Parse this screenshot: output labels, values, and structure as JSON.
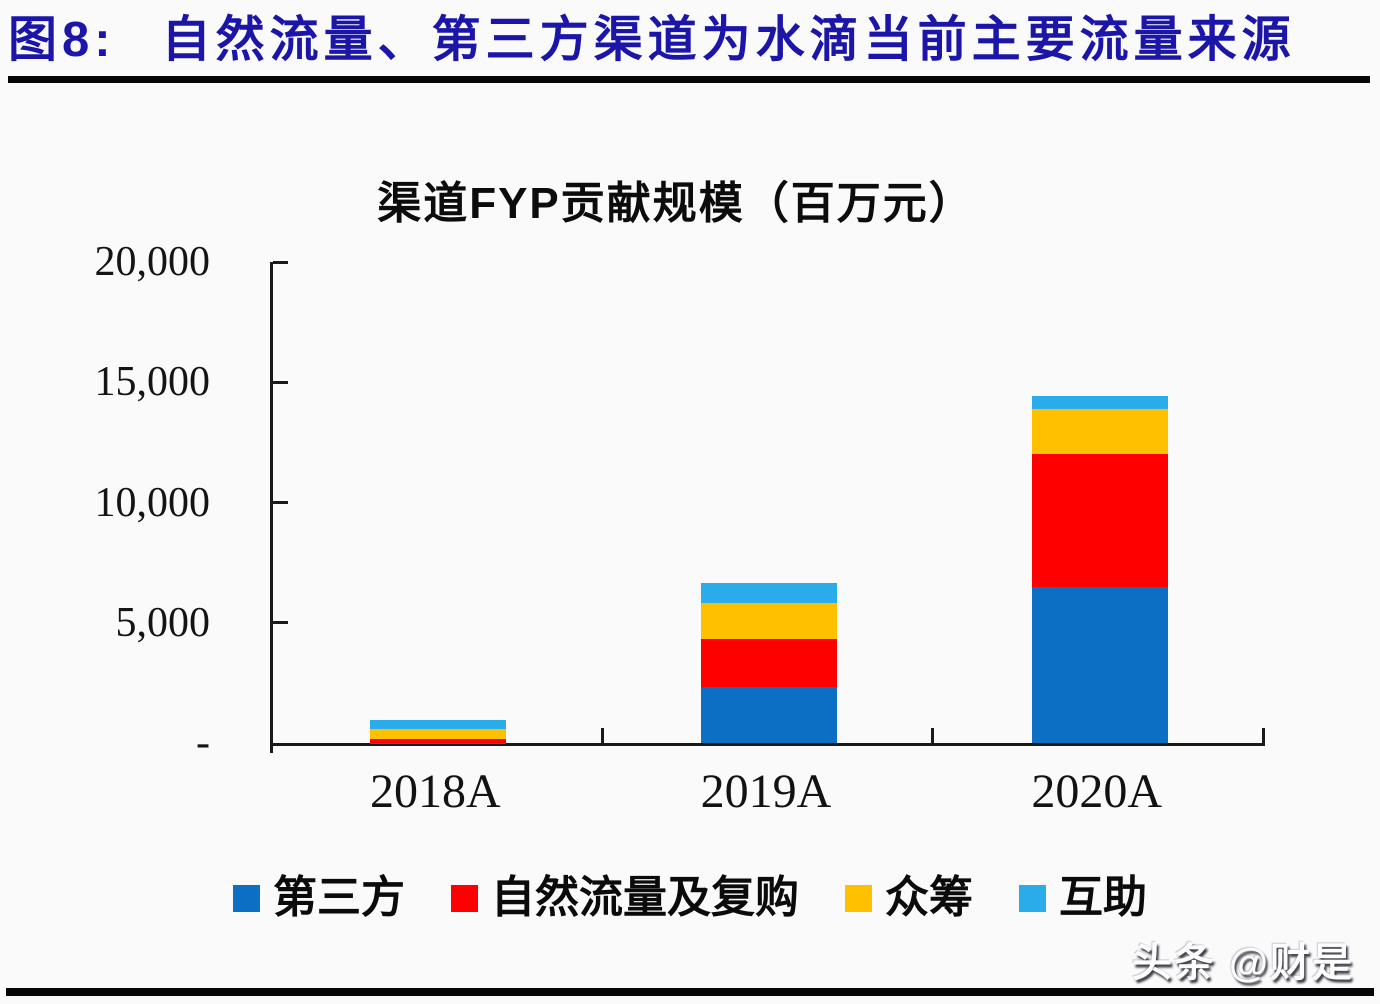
{
  "figure_header": {
    "label": "图8:",
    "title": "自然流量、第三方渠道为水滴当前主要流量来源"
  },
  "chart_data": {
    "type": "bar",
    "stacked": true,
    "title": "渠道FYP贡献规模（百万元）",
    "categories": [
      "2018A",
      "2019A",
      "2020A"
    ],
    "series": [
      {
        "key": "third-party",
        "name": "第三方",
        "color": "#0d6fc3",
        "values": [
          20,
          2321,
          6477
        ]
      },
      {
        "key": "natural-traffic-repurchase",
        "name": "自然流量及复购",
        "color": "#fe0000",
        "values": [
          127,
          1987,
          5554
        ]
      },
      {
        "key": "crowdfunding",
        "name": "众筹",
        "color": "#ffc000",
        "values": [
          452,
          1533,
          1876
        ]
      },
      {
        "key": "mutual-aid",
        "name": "互助",
        "color": "#29ace9",
        "values": [
          375,
          827,
          519
        ]
      }
    ],
    "ylim": [
      0,
      20000
    ],
    "yticks": [
      {
        "value": 20000,
        "label": "20,000"
      },
      {
        "value": 15000,
        "label": "15,000"
      },
      {
        "value": 10000,
        "label": "10,000"
      },
      {
        "value": 5000,
        "label": "5,000"
      },
      {
        "value": 0,
        "label": "-"
      }
    ],
    "grid": false,
    "legend_position": "bottom"
  },
  "watermark": {
    "text": "头条 @财是"
  }
}
